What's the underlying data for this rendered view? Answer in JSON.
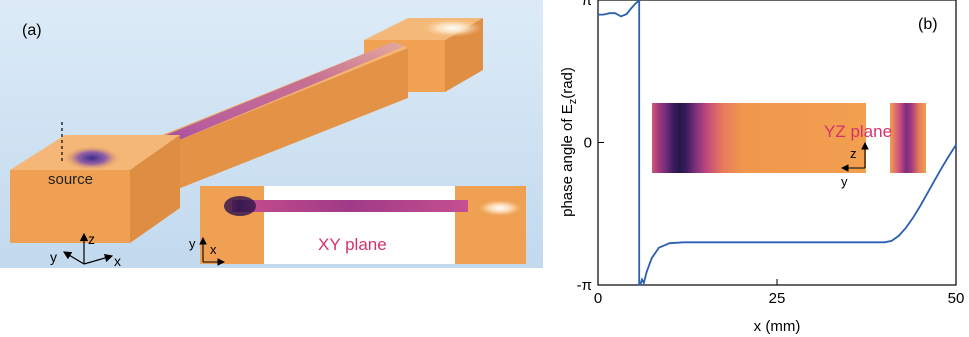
{
  "panel_a": {
    "label": "(a)",
    "source_label": "source",
    "inset_label": "XY plane",
    "axes3d": {
      "z": "z",
      "y": "y",
      "x": "x"
    },
    "inset_axes": {
      "y": "y",
      "x": "x"
    },
    "colors": {
      "orange": "#f0a052",
      "dark": "#2a1a55",
      "magenta": "#b03a8a",
      "background": "#cfe2f3"
    }
  },
  "panel_b": {
    "label": "(b)",
    "inset_label": "YZ plane",
    "inset_axes": {
      "z": "z",
      "y": "y"
    },
    "colors": {
      "line": "#2b5fb0",
      "label": "#d6336c"
    }
  },
  "chart_data": {
    "type": "line",
    "xlabel": "x (mm)",
    "ylabel_main": "phase angle of E",
    "ylabel_sub": "z",
    "ylabel_unit": "(rad)",
    "xlim": [
      0,
      50
    ],
    "ylim": [
      -3.1416,
      3.1416
    ],
    "xticks": [
      0,
      25,
      50
    ],
    "xtick_labels": [
      "0",
      "25",
      "50"
    ],
    "yticks": [
      -3.1416,
      0,
      3.1416
    ],
    "ytick_labels": [
      "-π",
      "0",
      "π"
    ],
    "grid": false,
    "series": [
      {
        "segments": [
          {
            "x": [
              0,
              0.8,
              1.6,
              2.4,
              3.2,
              4.0,
              4.6,
              5.1,
              5.5,
              5.75
            ],
            "y": [
              2.82,
              2.82,
              2.85,
              2.85,
              2.78,
              2.83,
              2.95,
              3.04,
              3.1,
              3.14
            ]
          },
          {
            "x": [
              5.75,
              5.9,
              6.15,
              6.4
            ],
            "y": [
              -3.14,
              -3.14,
              -3.02,
              -3.1
            ]
          },
          {
            "x": [
              6.4,
              6.8,
              7.5,
              8.5,
              10,
              12,
              15,
              20,
              25,
              30,
              35,
              38,
              40,
              41,
              42,
              43,
              44,
              45,
              46,
              47,
              48,
              49,
              50
            ],
            "y": [
              -3.1,
              -2.85,
              -2.55,
              -2.32,
              -2.22,
              -2.2,
              -2.2,
              -2.2,
              -2.2,
              -2.2,
              -2.2,
              -2.2,
              -2.2,
              -2.17,
              -2.06,
              -1.88,
              -1.66,
              -1.4,
              -1.12,
              -0.84,
              -0.56,
              -0.3,
              -0.05
            ]
          }
        ]
      }
    ]
  }
}
